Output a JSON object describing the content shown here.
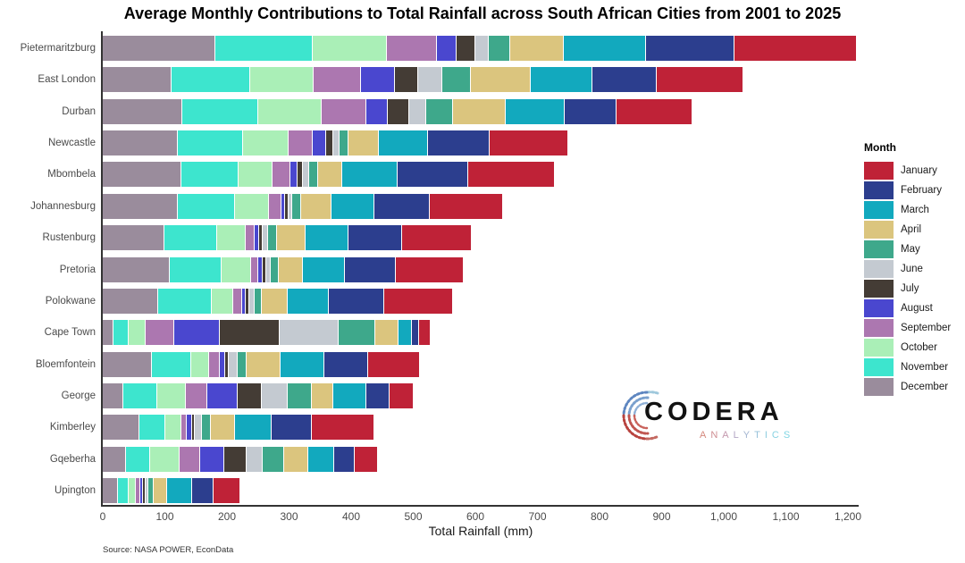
{
  "title": "Average Monthly Contributions to Total Rainfall across South African Cities from 2001 to 2025",
  "source_note": "Source: NASA POWER, EconData",
  "xaxis": {
    "label": "Total Rainfall (mm)",
    "ticks": [
      {
        "label": "0",
        "value": 0
      },
      {
        "label": "100",
        "value": 100
      },
      {
        "label": "200",
        "value": 200
      },
      {
        "label": "300",
        "value": 300
      },
      {
        "label": "400",
        "value": 400
      },
      {
        "label": "500",
        "value": 500
      },
      {
        "label": "600",
        "value": 600
      },
      {
        "label": "700",
        "value": 700
      },
      {
        "label": "800",
        "value": 800
      },
      {
        "label": "900",
        "value": 900
      },
      {
        "label": "1,000",
        "value": 1000
      },
      {
        "label": "1,100",
        "value": 1100
      },
      {
        "label": "1,200",
        "value": 1200
      }
    ],
    "xlim": [
      0,
      1260
    ]
  },
  "legend": {
    "title": "Month",
    "position": "right",
    "items": [
      {
        "label": "January",
        "color": "#BF2237"
      },
      {
        "label": "February",
        "color": "#2C3E8E"
      },
      {
        "label": "March",
        "color": "#12A9BE"
      },
      {
        "label": "April",
        "color": "#DBC57E"
      },
      {
        "label": "May",
        "color": "#3EA88B"
      },
      {
        "label": "June",
        "color": "#C4CAD1"
      },
      {
        "label": "July",
        "color": "#443C35"
      },
      {
        "label": "August",
        "color": "#4A47CF"
      },
      {
        "label": "September",
        "color": "#AC77B0"
      },
      {
        "label": "October",
        "color": "#AAEFB7"
      },
      {
        "label": "November",
        "color": "#3DE5CE"
      },
      {
        "label": "December",
        "color": "#9A8C9C"
      }
    ]
  },
  "chart_data": {
    "type": "bar",
    "orientation": "horizontal",
    "stacked": true,
    "unit": "mm",
    "grid": false,
    "stack_order_left_to_right": [
      "December",
      "November",
      "October",
      "September",
      "August",
      "July",
      "June",
      "May",
      "April",
      "March",
      "February",
      "January"
    ],
    "categories": [
      "Pietermaritzburg",
      "East London",
      "Durban",
      "Newcastle",
      "Mbombela",
      "Johannesburg",
      "Rustenburg",
      "Pretoria",
      "Polokwane",
      "Cape Town",
      "Bloemfontein",
      "George",
      "Kimberley",
      "Gqeberha",
      "Upington"
    ],
    "series": [
      {
        "name": "January",
        "values": [
          195,
          138,
          122,
          125,
          138,
          116,
          111,
          108,
          108,
          17,
          81,
          37,
          99,
          36,
          41
        ]
      },
      {
        "name": "February",
        "values": [
          141,
          102,
          81,
          98,
          112,
          88,
          85,
          80,
          88,
          10,
          70,
          37,
          63,
          31,
          34
        ]
      },
      {
        "name": "March",
        "values": [
          131,
          98,
          94,
          78,
          88,
          68,
          67,
          67,
          65,
          20,
          68,
          51,
          58,
          41,
          38
        ]
      },
      {
        "name": "April",
        "values": [
          85,
          95,
          84,
          47,
          37,
          47,
          45,
          37,
          41,
          37,
          54,
          33,
          38,
          37,
          20
        ]
      },
      {
        "name": "May",
        "values": [
          33,
          44,
          41,
          13,
          13,
          13,
          13,
          11,
          10,
          57,
          13,
          38,
          13,
          34,
          7
        ]
      },
      {
        "name": "June",
        "values": [
          21,
          37,
          26,
          9,
          9,
          4,
          7,
          7,
          7,
          94,
          13,
          41,
          10,
          24,
          4
        ]
      },
      {
        "name": "July",
        "values": [
          28,
          37,
          33,
          10,
          7,
          4,
          4,
          4,
          4,
          94,
          4,
          37,
          3,
          34,
          3
        ]
      },
      {
        "name": "August",
        "values": [
          30,
          53,
          33,
          21,
          11,
          5,
          6,
          6,
          4,
          72,
          7,
          47,
          6,
          38,
          2
        ]
      },
      {
        "name": "September",
        "values": [
          80,
          75,
          71,
          37,
          27,
          18,
          13,
          10,
          13,
          45,
          16,
          33,
          8,
          31,
          6
        ]
      },
      {
        "name": "October",
        "values": [
          118,
          101,
          101,
          72,
          53,
          54,
          44,
          45,
          34,
          26,
          27,
          45,
          24,
          47,
          10
        ]
      },
      {
        "name": "November",
        "values": [
          155,
          125,
          121,
          104,
          91,
          91,
          84,
          82,
          84,
          23,
          63,
          54,
          41,
          37,
          16
        ]
      },
      {
        "name": "December",
        "values": [
          180,
          109,
          126,
          119,
          125,
          119,
          98,
          107,
          88,
          16,
          77,
          31,
          57,
          36,
          23
        ]
      }
    ],
    "totals": [
      1197,
      1014,
      933,
      733,
      711,
      627,
      577,
      564,
      546,
      511,
      493,
      484,
      420,
      426,
      204
    ]
  },
  "logo": {
    "name": "CODERA",
    "subtitle": "ANALYTICS"
  }
}
